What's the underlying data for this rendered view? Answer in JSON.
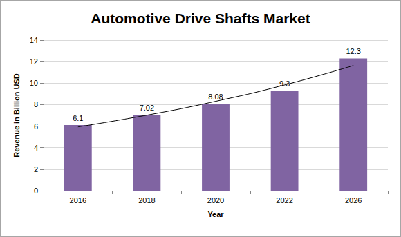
{
  "chart_data": {
    "type": "bar",
    "title": "Automotive Drive Shafts Market",
    "x_label": "Year",
    "y_label": "Revenue in Billion USD",
    "categories": [
      "2016",
      "2018",
      "2020",
      "2022",
      "2026"
    ],
    "series": [
      {
        "type": "bar",
        "color": "#8064a2",
        "values": [
          6.1,
          7.02,
          8.08,
          9.3,
          12.3
        ],
        "data_labels": true
      },
      {
        "type": "line",
        "color": "#000000",
        "marker": "none",
        "line_style": "smooth",
        "values": [
          5.93,
          7.02,
          8.31,
          9.83,
          11.64
        ],
        "data_labels": false
      }
    ],
    "ylim": [
      0,
      14
    ],
    "yticks": [
      0,
      2,
      4,
      6,
      8,
      10,
      12,
      14
    ],
    "grid": true
  }
}
